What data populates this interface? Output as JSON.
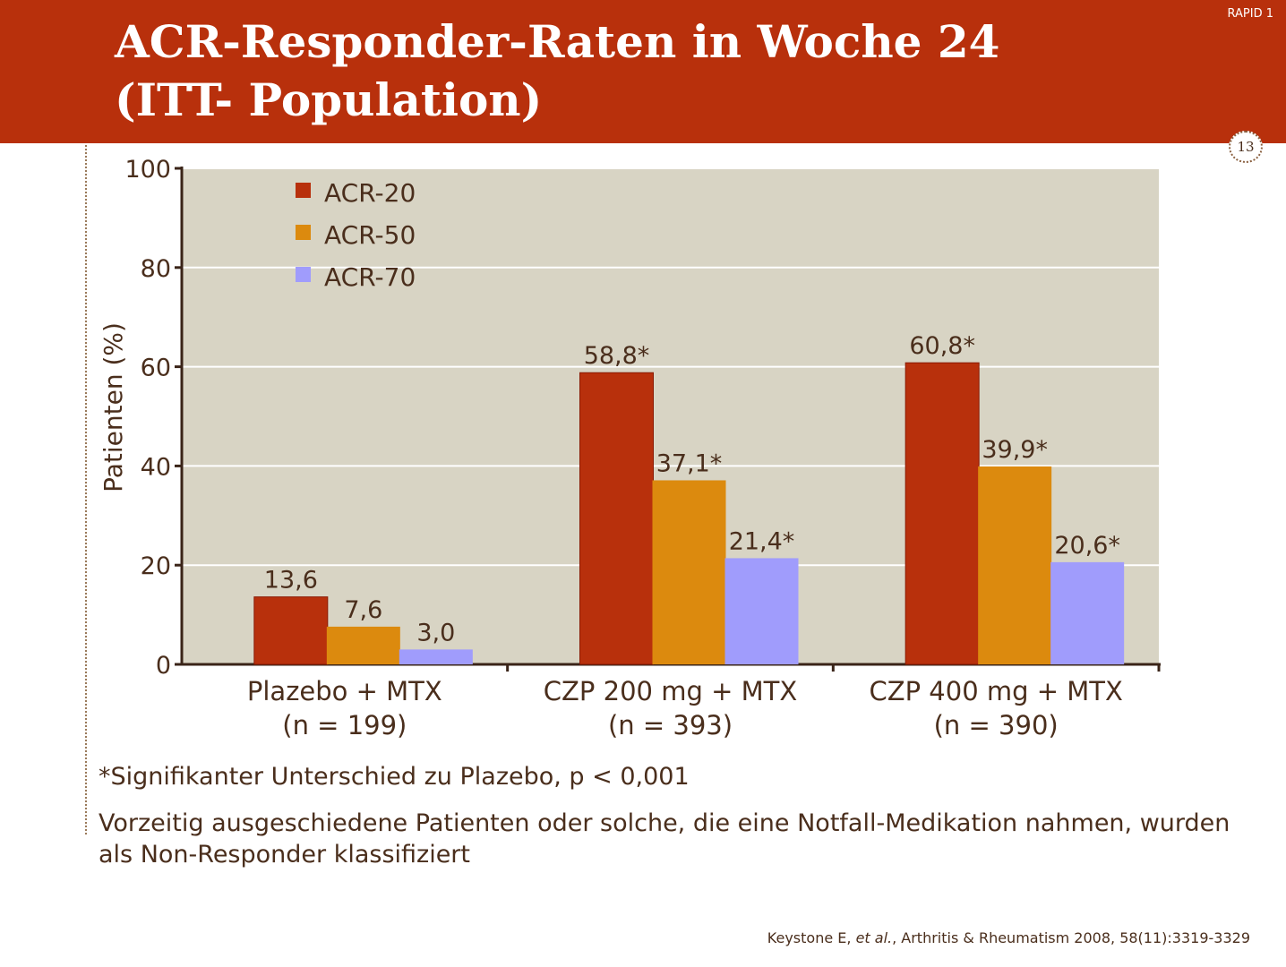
{
  "header": {
    "title_line1": "ACR-Responder-Raten in Woche 24",
    "title_line2": "(ITT- Population)",
    "slide_tag": "RAPID 1",
    "page_number": "13"
  },
  "colors": {
    "header": "#b8300c",
    "plot_background": "#d8d4c4",
    "acr20": "#b8300c",
    "acr50": "#dc8a0e",
    "acr70": "#a09cfc",
    "text": "#4a2e1c"
  },
  "chart_data": {
    "type": "bar",
    "ylabel": "Patienten (%)",
    "xlabel": "",
    "ylim": [
      0,
      100
    ],
    "yticks": [
      0,
      20,
      40,
      60,
      80,
      100
    ],
    "grid": true,
    "legend_position": "top-left",
    "categories": [
      {
        "line1": "Plazebo + MTX",
        "line2": "(n = 199)"
      },
      {
        "line1": "CZP 200 mg + MTX",
        "line2": "(n = 393)"
      },
      {
        "line1": "CZP 400 mg + MTX",
        "line2": "(n = 390)"
      }
    ],
    "series": [
      {
        "name": "ACR-20",
        "color": "#b8300c",
        "values": [
          13.6,
          58.8,
          60.8
        ],
        "labels": [
          "13,6",
          "58,8*",
          "60,8*"
        ]
      },
      {
        "name": "ACR-50",
        "color": "#dc8a0e",
        "values": [
          7.6,
          37.1,
          39.9
        ],
        "labels": [
          "7,6",
          "37,1*",
          "39,9*"
        ]
      },
      {
        "name": "ACR-70",
        "color": "#a09cfc",
        "values": [
          3.0,
          21.4,
          20.6
        ],
        "labels": [
          "3,0",
          "21,4*",
          "20,6*"
        ]
      }
    ]
  },
  "footnote": "*Signifikanter Unterschied zu Plazebo, p < 0,001",
  "note": "Vorzeitig ausgeschiedene Patienten oder solche, die eine Notfall-Medikation nahmen, wurden als Non-Responder klassifiziert",
  "citation": {
    "authors": "Keystone E,",
    "etal": "et al.",
    "journal": ", Arthritis & Rheumatism 2008, 58(11):3319-3329"
  }
}
